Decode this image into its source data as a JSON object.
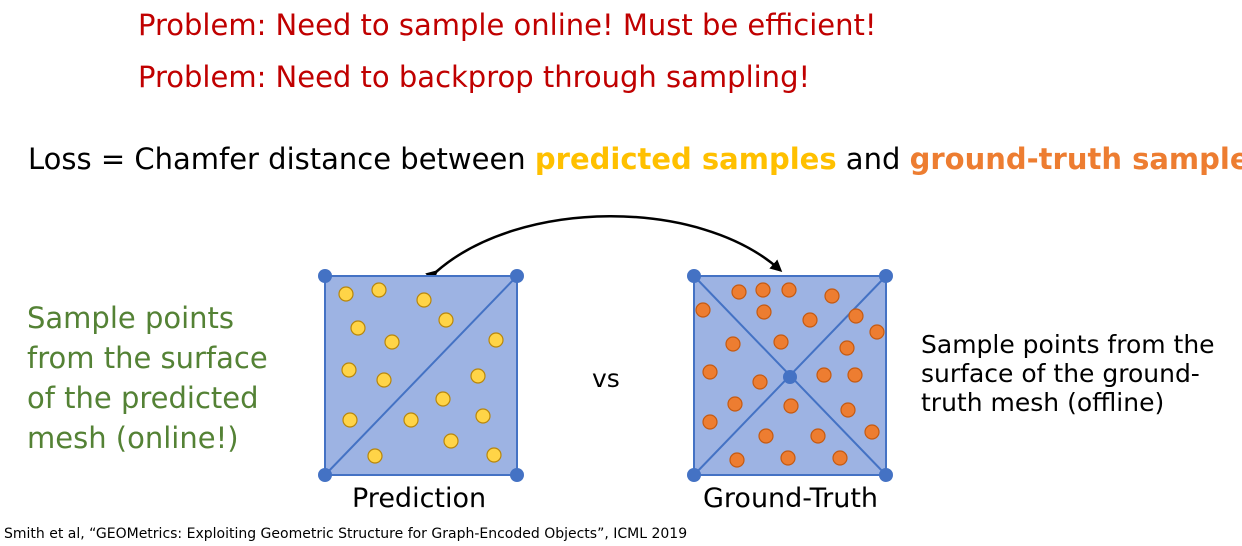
{
  "problems": [
    "Problem: Need to sample online! Must be efficient!",
    "Problem: Need to backprop through sampling!"
  ],
  "loss": {
    "prefix": "Loss = Chamfer distance between ",
    "predicted": "predicted samples",
    "conjunction": " and ",
    "ground_truth": "ground-truth samples"
  },
  "left_description": "Sample points from the surface of the predicted mesh (online!)",
  "right_description": "Sample points from the surface of the ground-truth mesh (offline)",
  "vs_label": "vs",
  "prediction_label": "Prediction",
  "ground_truth_label": "Ground-Truth",
  "citation": "Smith et al, “GEOMetrics: Exploiting Geometric Structure for Graph-Encoded Objects”, ICML 2019",
  "colors": {
    "problem_text": "#c00000",
    "predicted_text": "#ffc000",
    "ground_truth_text": "#ed7d31",
    "left_description_text": "#548235",
    "mesh_fill": "#9db3e3",
    "mesh_edge": "#4472c4",
    "vertex": "#4472c4",
    "predicted_sample": "#ffd447",
    "ground_truth_sample": "#ed7d31"
  }
}
